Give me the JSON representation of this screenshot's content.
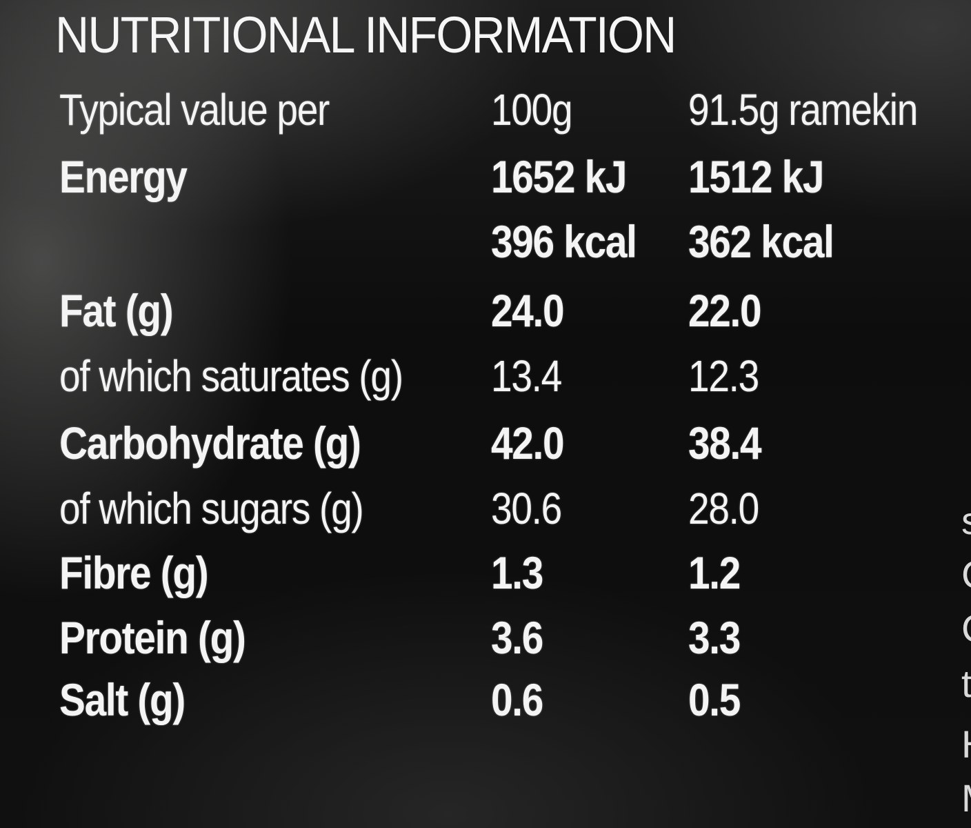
{
  "title": "NUTRITIONAL INFORMATION",
  "header": {
    "label": "Typical value per",
    "col1": "100g",
    "col2": "91.5g ramekin"
  },
  "rows": [
    {
      "label": "Energy",
      "v100": "1652 kJ",
      "vserve": "1512 kJ",
      "bold": true
    },
    {
      "label": "",
      "v100": "396 kcal",
      "vserve": "362 kcal",
      "bold": true
    },
    {
      "label": "Fat (g)",
      "v100": "24.0",
      "vserve": "22.0",
      "bold": true
    },
    {
      "label": "of which saturates (g)",
      "v100": "13.4",
      "vserve": "12.3",
      "bold": false
    },
    {
      "label": "Carbohydrate (g)",
      "v100": "42.0",
      "vserve": "38.4",
      "bold": true
    },
    {
      "label": "of which sugars (g)",
      "v100": "30.6",
      "vserve": "28.0",
      "bold": false
    },
    {
      "label": "Fibre (g)",
      "v100": "1.3",
      "vserve": "1.2",
      "bold": true
    },
    {
      "label": "Protein (g)",
      "v100": "3.6",
      "vserve": "3.3",
      "bold": true
    },
    {
      "label": "Salt (g)",
      "v100": "0.6",
      "vserve": "0.5",
      "bold": true
    }
  ],
  "edge_text": [
    "s",
    "C",
    "C",
    "t",
    "H",
    "M"
  ]
}
